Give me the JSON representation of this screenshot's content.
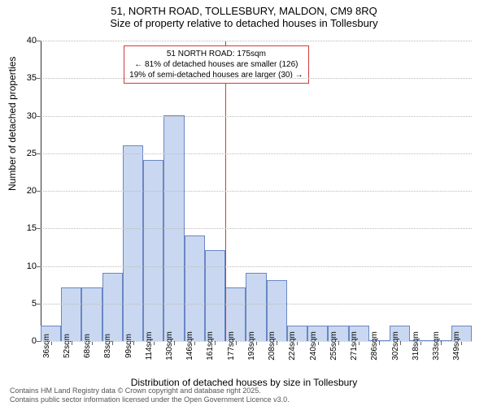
{
  "titles": {
    "line1": "51, NORTH ROAD, TOLLESBURY, MALDON, CM9 8RQ",
    "line2": "Size of property relative to detached houses in Tollesbury"
  },
  "axes": {
    "ylabel": "Number of detached properties",
    "xlabel": "Distribution of detached houses by size in Tollesbury",
    "ylim": [
      0,
      40
    ],
    "yticks": [
      0,
      5,
      10,
      15,
      20,
      25,
      30,
      35,
      40
    ],
    "grid_color": "#bbbbbb"
  },
  "histogram": {
    "type": "histogram",
    "bar_color": "#c9d8f0",
    "bar_border": "#6a86c5",
    "categories": [
      "36sqm",
      "52sqm",
      "68sqm",
      "83sqm",
      "99sqm",
      "114sqm",
      "130sqm",
      "146sqm",
      "161sqm",
      "177sqm",
      "193sqm",
      "208sqm",
      "224sqm",
      "240sqm",
      "255sqm",
      "271sqm",
      "286sqm",
      "302sqm",
      "318sqm",
      "333sqm",
      "349sqm"
    ],
    "values": [
      2,
      7,
      7,
      9,
      26,
      24,
      30,
      14,
      12,
      7,
      9,
      8,
      2,
      2,
      2,
      2,
      0,
      2,
      0,
      0,
      2
    ]
  },
  "reference": {
    "bin_index": 9,
    "line_color": "#d23a3a"
  },
  "annotation": {
    "border_color": "#d23a3a",
    "lines": {
      "l1": "51 NORTH ROAD: 175sqm",
      "l2": "← 81% of detached houses are smaller (126)",
      "l3": "19% of semi-detached houses are larger (30) →"
    }
  },
  "footer": {
    "l1": "Contains HM Land Registry data © Crown copyright and database right 2025.",
    "l2": "Contains public sector information licensed under the Open Government Licence v3.0."
  }
}
